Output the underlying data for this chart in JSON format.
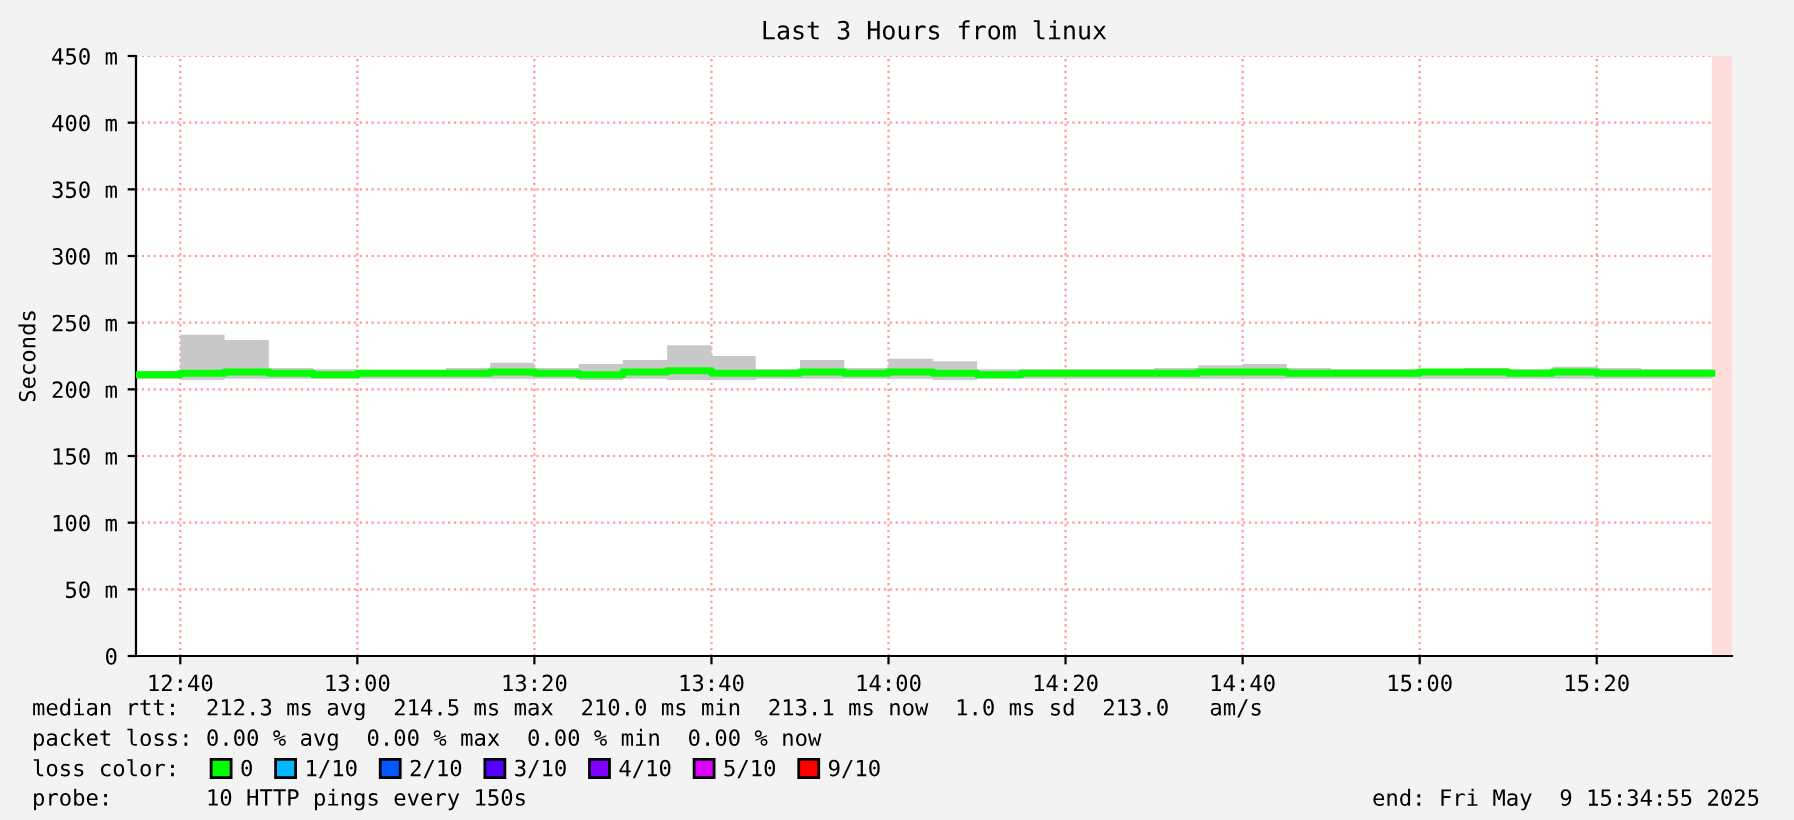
{
  "chart_data": {
    "type": "step",
    "title": "Last 3 Hours from linux",
    "ylabel": "Seconds",
    "x": [
      12.5833,
      12.6667,
      12.75,
      12.8333,
      12.9167,
      13.0,
      13.0833,
      13.1667,
      13.25,
      13.3333,
      13.4167,
      13.5,
      13.5833,
      13.6667,
      13.75,
      13.8333,
      13.9167,
      14.0,
      14.0833,
      14.1667,
      14.25,
      14.3333,
      14.4167,
      14.5,
      14.5833,
      14.6667,
      14.75,
      14.8333,
      14.9167,
      15.0,
      15.0833,
      15.1667,
      15.25,
      15.3333,
      15.4167,
      15.5,
      15.55
    ],
    "series": [
      {
        "name": "0",
        "color": "#00ff00",
        "values": [
          211,
          212,
          213,
          212,
          211,
          212,
          212,
          212,
          213,
          212,
          211,
          213,
          214,
          212,
          212,
          213,
          212,
          213,
          212,
          211,
          212,
          212,
          212,
          212,
          213,
          213,
          212,
          212,
          212,
          213,
          213,
          212,
          213,
          212,
          212,
          212,
          212
        ],
        "lower": [
          208,
          207,
          208,
          208,
          208,
          208,
          208,
          208,
          208,
          208,
          207,
          208,
          207,
          207,
          208,
          208,
          208,
          208,
          207,
          208,
          208,
          208,
          208,
          208,
          208,
          208,
          208,
          208,
          208,
          208,
          208,
          208,
          208,
          208,
          208,
          208,
          208
        ],
        "upper": [
          214,
          241,
          237,
          216,
          215,
          214,
          214,
          216,
          220,
          216,
          219,
          222,
          233,
          225,
          215,
          222,
          216,
          223,
          221,
          215,
          215,
          215,
          215,
          216,
          218,
          219,
          216,
          215,
          215,
          215,
          216,
          215,
          217,
          216,
          215,
          215,
          215
        ]
      },
      {
        "name": "1/10",
        "color": "#00b8ff",
        "values": [
          null,
          null,
          null,
          null,
          null,
          null,
          null,
          null,
          null,
          null,
          null,
          null,
          null,
          null,
          null,
          null,
          null,
          null,
          null,
          null,
          null,
          null,
          null,
          null,
          null,
          null,
          null,
          null,
          null,
          null,
          null,
          null,
          null,
          null,
          null,
          null,
          null
        ]
      },
      {
        "name": "2/10",
        "color": "#0059ff",
        "values": [
          null,
          null,
          null,
          null,
          null,
          null,
          null,
          null,
          null,
          null,
          null,
          null,
          null,
          null,
          null,
          null,
          null,
          null,
          null,
          null,
          null,
          null,
          null,
          null,
          null,
          null,
          null,
          null,
          null,
          null,
          null,
          null,
          null,
          null,
          null,
          null,
          null
        ]
      },
      {
        "name": "3/10",
        "color": "#5500ff",
        "values": [
          null,
          null,
          null,
          null,
          null,
          null,
          null,
          null,
          null,
          null,
          null,
          null,
          null,
          null,
          null,
          null,
          null,
          null,
          null,
          null,
          null,
          null,
          null,
          null,
          null,
          null,
          null,
          null,
          null,
          null,
          null,
          null,
          null,
          null,
          null,
          null,
          null
        ]
      },
      {
        "name": "4/10",
        "color": "#7e00ff",
        "values": [
          null,
          null,
          null,
          null,
          null,
          null,
          null,
          null,
          null,
          null,
          null,
          null,
          null,
          null,
          null,
          null,
          null,
          null,
          null,
          null,
          null,
          null,
          null,
          null,
          null,
          null,
          null,
          null,
          null,
          null,
          null,
          null,
          null,
          null,
          null,
          null,
          null
        ]
      },
      {
        "name": "5/10",
        "color": "#dd00ff",
        "values": [
          null,
          null,
          null,
          null,
          null,
          null,
          null,
          null,
          null,
          null,
          null,
          null,
          null,
          null,
          null,
          null,
          null,
          null,
          null,
          null,
          null,
          null,
          null,
          null,
          null,
          null,
          null,
          null,
          null,
          null,
          null,
          null,
          null,
          null,
          null,
          null,
          null
        ]
      },
      {
        "name": "9/10",
        "color": "#ff0000",
        "values": [
          null,
          null,
          null,
          null,
          null,
          null,
          null,
          null,
          null,
          null,
          null,
          null,
          null,
          null,
          null,
          null,
          null,
          null,
          null,
          null,
          null,
          null,
          null,
          null,
          null,
          null,
          null,
          null,
          null,
          null,
          null,
          null,
          null,
          null,
          null,
          null,
          null
        ]
      }
    ],
    "legend": "bottom",
    "legend_title": "loss color:",
    "xlim": [
      12.5833,
      15.588
    ],
    "xticks": [
      {
        "value": 12.6667,
        "label": "12:40"
      },
      {
        "value": 13.0,
        "label": "13:00"
      },
      {
        "value": 13.3333,
        "label": "13:20"
      },
      {
        "value": 13.6667,
        "label": "13:40"
      },
      {
        "value": 14.0,
        "label": "14:00"
      },
      {
        "value": 14.3333,
        "label": "14:20"
      },
      {
        "value": 14.6667,
        "label": "14:40"
      },
      {
        "value": 15.0,
        "label": "15:00"
      },
      {
        "value": 15.3333,
        "label": "15:20"
      }
    ],
    "ylim": [
      0,
      450
    ],
    "yticks": [
      0,
      {
        "value": 50,
        "label": "50 m"
      },
      {
        "value": 100,
        "label": "100 m"
      },
      {
        "value": 150,
        "label": "150 m"
      },
      {
        "value": 200,
        "label": "200 m"
      },
      {
        "value": 250,
        "label": "250 m"
      },
      {
        "value": 300,
        "label": "300 m"
      },
      {
        "value": 350,
        "label": "350 m"
      },
      {
        "value": 400,
        "label": "400 m"
      },
      {
        "value": 450,
        "label": "450 m"
      }
    ],
    "grid": true,
    "bands": [
      {
        "axis": "x",
        "from": 15.55,
        "to": 15.588,
        "color": "#ffdddd"
      }
    ],
    "annotations": [
      "median rtt:  212.3 ms avg  214.5 ms max  210.0 ms min  213.1 ms now  1.0 ms sd  213.0   am/s",
      "packet loss: 0.00 % avg  0.00 % max  0.00 % min  0.00 % now",
      "probe:       10 HTTP pings every 150s",
      "end: Fri May  9 15:34:55 2025"
    ]
  }
}
